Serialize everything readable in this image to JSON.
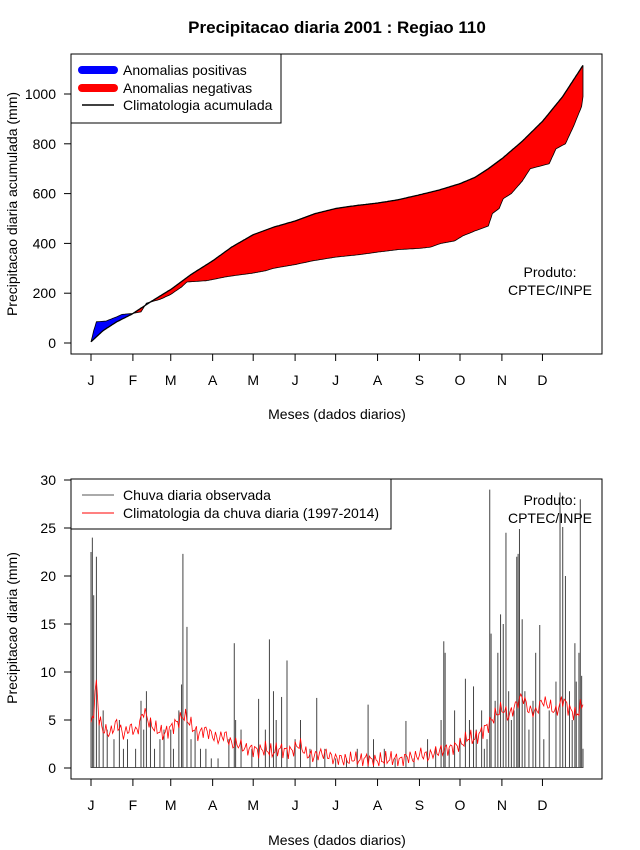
{
  "page_title": "Precipitacao diaria 2001 : Regiao 110",
  "chart_data": [
    {
      "type": "area",
      "title": "Precipitacao diaria 2001 : Regiao 110",
      "xlabel": "Meses (dados diarios)",
      "ylabel": "Precipitacao diaria acumulada (mm)",
      "xlim": [
        1,
        365
      ],
      "ylim": [
        0,
        1100
      ],
      "yticks": [
        0,
        200,
        400,
        600,
        800,
        1000
      ],
      "month_ticks": [
        "J",
        "F",
        "M",
        "A",
        "M",
        "J",
        "J",
        "A",
        "S",
        "O",
        "N",
        "D"
      ],
      "month_days": [
        1,
        32,
        60,
        91,
        121,
        152,
        182,
        213,
        244,
        274,
        305,
        335
      ],
      "legend": [
        {
          "label": "Anomalias positivas",
          "color": "#0000ff"
        },
        {
          "label": "Anomalias negativas",
          "color": "#ff0000"
        },
        {
          "label": "Climatologia acumulada",
          "color": "#000000"
        }
      ],
      "series": [
        {
          "name": "Climatologia acumulada",
          "points": [
            [
              1,
              5
            ],
            [
              10,
              50
            ],
            [
              20,
              85
            ],
            [
              31,
              115
            ],
            [
              45,
              165
            ],
            [
              60,
              215
            ],
            [
              75,
              275
            ],
            [
              91,
              330
            ],
            [
              105,
              385
            ],
            [
              121,
              435
            ],
            [
              136,
              465
            ],
            [
              152,
              490
            ],
            [
              167,
              520
            ],
            [
              182,
              540
            ],
            [
              197,
              552
            ],
            [
              213,
              562
            ],
            [
              228,
              575
            ],
            [
              244,
              595
            ],
            [
              259,
              615
            ],
            [
              274,
              640
            ],
            [
              285,
              665
            ],
            [
              295,
              700
            ],
            [
              305,
              740
            ],
            [
              320,
              810
            ],
            [
              335,
              890
            ],
            [
              350,
              990
            ],
            [
              365,
              1115
            ]
          ]
        },
        {
          "name": "Observado acumulado",
          "points": [
            [
              1,
              5
            ],
            [
              3,
              50
            ],
            [
              5,
              85
            ],
            [
              12,
              88
            ],
            [
              20,
              105
            ],
            [
              24,
              115
            ],
            [
              31,
              118
            ],
            [
              38,
              125
            ],
            [
              42,
              160
            ],
            [
              52,
              175
            ],
            [
              60,
              195
            ],
            [
              68,
              225
            ],
            [
              72,
              245
            ],
            [
              86,
              250
            ],
            [
              91,
              255
            ],
            [
              100,
              265
            ],
            [
              106,
              270
            ],
            [
              120,
              280
            ],
            [
              130,
              290
            ],
            [
              136,
              300
            ],
            [
              152,
              315
            ],
            [
              165,
              330
            ],
            [
              182,
              345
            ],
            [
              200,
              355
            ],
            [
              213,
              365
            ],
            [
              228,
              375
            ],
            [
              244,
              380
            ],
            [
              252,
              385
            ],
            [
              260,
              400
            ],
            [
              270,
              410
            ],
            [
              276,
              430
            ],
            [
              285,
              450
            ],
            [
              290,
              460
            ],
            [
              295,
              470
            ],
            [
              298,
              520
            ],
            [
              303,
              540
            ],
            [
              306,
              580
            ],
            [
              312,
              600
            ],
            [
              320,
              650
            ],
            [
              326,
              700
            ],
            [
              340,
              720
            ],
            [
              345,
              780
            ],
            [
              352,
              800
            ],
            [
              358,
              870
            ],
            [
              364,
              950
            ],
            [
              365,
              990
            ]
          ]
        }
      ],
      "annotation": {
        "line1": "Produto:",
        "line2": "CPTEC/INPE"
      }
    },
    {
      "type": "line",
      "title": "",
      "xlabel": "Meses (dados diarios)",
      "ylabel": "Precipitacao diaria (mm)",
      "xlim": [
        1,
        365
      ],
      "ylim": [
        0,
        30
      ],
      "yticks": [
        0,
        5,
        10,
        15,
        20,
        25,
        30
      ],
      "month_ticks": [
        "J",
        "F",
        "M",
        "A",
        "M",
        "J",
        "J",
        "A",
        "S",
        "O",
        "N",
        "D"
      ],
      "month_days": [
        1,
        32,
        60,
        91,
        121,
        152,
        182,
        213,
        244,
        274,
        305,
        335
      ],
      "legend": [
        {
          "label": "Chuva diaria observada",
          "color": "#555555"
        },
        {
          "label": "Climatologia da chuva diaria (1997-2014)",
          "color": "#ff0000"
        }
      ],
      "observed_daily_bars": [
        [
          1,
          22.5
        ],
        [
          2,
          24
        ],
        [
          3,
          18
        ],
        [
          5,
          22
        ],
        [
          7,
          5
        ],
        [
          10,
          6
        ],
        [
          13,
          4
        ],
        [
          18,
          3
        ],
        [
          22,
          5
        ],
        [
          25,
          2
        ],
        [
          28,
          3
        ],
        [
          34,
          2
        ],
        [
          38,
          7
        ],
        [
          40,
          4
        ],
        [
          42,
          8
        ],
        [
          45,
          5
        ],
        [
          48,
          2
        ],
        [
          52,
          3
        ],
        [
          55,
          4
        ],
        [
          60,
          4
        ],
        [
          62,
          2
        ],
        [
          66,
          6
        ],
        [
          68,
          8.7
        ],
        [
          69,
          22.3
        ],
        [
          72,
          14.7
        ],
        [
          75,
          3
        ],
        [
          78,
          4
        ],
        [
          82,
          2
        ],
        [
          86,
          2
        ],
        [
          90,
          1
        ],
        [
          95,
          1
        ],
        [
          103,
          3
        ],
        [
          107,
          13
        ],
        [
          108,
          5
        ],
        [
          112,
          4
        ],
        [
          120,
          2
        ],
        [
          125,
          7.2
        ],
        [
          130,
          4
        ],
        [
          133,
          13.4
        ],
        [
          136,
          8
        ],
        [
          138,
          5
        ],
        [
          142,
          7.4
        ],
        [
          146,
          11.2
        ],
        [
          152,
          3
        ],
        [
          156,
          5
        ],
        [
          163,
          2
        ],
        [
          168,
          7.3
        ],
        [
          174,
          2
        ],
        [
          182,
          1
        ],
        [
          190,
          1
        ],
        [
          198,
          2
        ],
        [
          206,
          6.6
        ],
        [
          210,
          3
        ],
        [
          218,
          2
        ],
        [
          226,
          1
        ],
        [
          234,
          4.9
        ],
        [
          240,
          1
        ],
        [
          250,
          3
        ],
        [
          256,
          2
        ],
        [
          260,
          5
        ],
        [
          262,
          13.2
        ],
        [
          263,
          12
        ],
        [
          266,
          2
        ],
        [
          270,
          6
        ],
        [
          274,
          3
        ],
        [
          278,
          9.3
        ],
        [
          281,
          5
        ],
        [
          284,
          8.5
        ],
        [
          286,
          4
        ],
        [
          290,
          6
        ],
        [
          292,
          2
        ],
        [
          294,
          3
        ],
        [
          296,
          29
        ],
        [
          297,
          14
        ],
        [
          300,
          7
        ],
        [
          302,
          12
        ],
        [
          304,
          16
        ],
        [
          306,
          15
        ],
        [
          308,
          24.5
        ],
        [
          310,
          8
        ],
        [
          312,
          5
        ],
        [
          314,
          6
        ],
        [
          316,
          22
        ],
        [
          317,
          22.3
        ],
        [
          318,
          24.9
        ],
        [
          320,
          15.5
        ],
        [
          322,
          8
        ],
        [
          325,
          4
        ],
        [
          328,
          7
        ],
        [
          330,
          12
        ],
        [
          333,
          14.9
        ],
        [
          336,
          3
        ],
        [
          340,
          6
        ],
        [
          345,
          9
        ],
        [
          348,
          28.7
        ],
        [
          350,
          25.1
        ],
        [
          352,
          20
        ],
        [
          355,
          8
        ],
        [
          357,
          5
        ],
        [
          359,
          13
        ],
        [
          360,
          9
        ],
        [
          362,
          12
        ],
        [
          363,
          28
        ],
        [
          364,
          9.6
        ],
        [
          365,
          2
        ]
      ],
      "climatology_daily": [
        [
          1,
          4.5
        ],
        [
          3,
          6
        ],
        [
          5,
          9
        ],
        [
          7,
          5
        ],
        [
          10,
          4
        ],
        [
          15,
          3.6
        ],
        [
          20,
          4.7
        ],
        [
          25,
          3.5
        ],
        [
          30,
          4.2
        ],
        [
          35,
          3.8
        ],
        [
          40,
          6
        ],
        [
          45,
          4.5
        ],
        [
          50,
          4
        ],
        [
          55,
          3.5
        ],
        [
          60,
          4.2
        ],
        [
          65,
          4.8
        ],
        [
          70,
          5.5
        ],
        [
          75,
          4.5
        ],
        [
          80,
          3.5
        ],
        [
          85,
          4
        ],
        [
          90,
          3.5
        ],
        [
          95,
          3
        ],
        [
          100,
          3.5
        ],
        [
          105,
          2.5
        ],
        [
          110,
          2.5
        ],
        [
          115,
          2
        ],
        [
          120,
          2
        ],
        [
          125,
          1.8
        ],
        [
          130,
          2
        ],
        [
          135,
          1.6
        ],
        [
          140,
          2
        ],
        [
          145,
          1.8
        ],
        [
          150,
          1.8
        ],
        [
          155,
          2.5
        ],
        [
          160,
          1.5
        ],
        [
          165,
          1.2
        ],
        [
          170,
          1.5
        ],
        [
          175,
          1.5
        ],
        [
          180,
          1
        ],
        [
          185,
          1
        ],
        [
          190,
          0.8
        ],
        [
          195,
          1
        ],
        [
          200,
          0.8
        ],
        [
          205,
          1
        ],
        [
          210,
          0.7
        ],
        [
          215,
          0.8
        ],
        [
          220,
          0.9
        ],
        [
          225,
          1
        ],
        [
          230,
          0.8
        ],
        [
          235,
          1.2
        ],
        [
          240,
          1
        ],
        [
          245,
          1.5
        ],
        [
          250,
          1.2
        ],
        [
          255,
          1.6
        ],
        [
          260,
          1.8
        ],
        [
          265,
          2
        ],
        [
          270,
          2.2
        ],
        [
          275,
          2.5
        ],
        [
          280,
          3.2
        ],
        [
          285,
          3
        ],
        [
          290,
          3.8
        ],
        [
          295,
          4.5
        ],
        [
          300,
          5.5
        ],
        [
          305,
          6.2
        ],
        [
          310,
          5.4
        ],
        [
          315,
          6.5
        ],
        [
          320,
          7.5
        ],
        [
          325,
          6
        ],
        [
          330,
          5.8
        ],
        [
          335,
          7
        ],
        [
          340,
          6.5
        ],
        [
          345,
          5.8
        ],
        [
          350,
          7.2
        ],
        [
          355,
          6.1
        ],
        [
          360,
          5.5
        ],
        [
          365,
          6.8
        ]
      ],
      "annotation": {
        "line1": "Produto:",
        "line2": "CPTEC/INPE"
      }
    }
  ]
}
